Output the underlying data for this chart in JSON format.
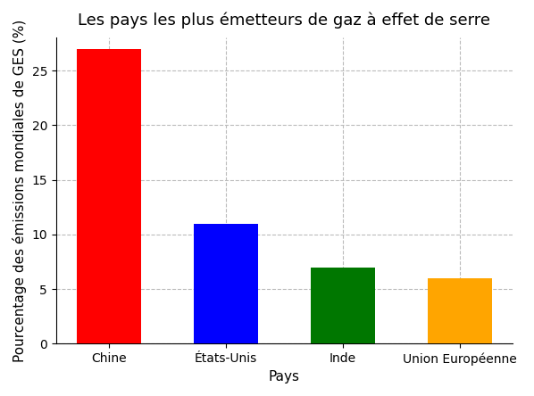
{
  "title": "Les pays les plus émetteurs de gaz à effet de serre",
  "xlabel": "Pays",
  "ylabel": "Pourcentage des émissions mondiales de GES (%)",
  "categories": [
    "Chine",
    "États-Unis",
    "Inde",
    "Union Européenne"
  ],
  "values": [
    27,
    11,
    7,
    6
  ],
  "bar_colors": [
    "#ff0000",
    "#0000ff",
    "#007700",
    "#ffa500"
  ],
  "ylim": [
    0,
    28
  ],
  "yticks": [
    0,
    5,
    10,
    15,
    20,
    25
  ],
  "grid_color": "#bbbbbb",
  "grid_linestyle": "--",
  "background_color": "#ffffff",
  "title_fontsize": 13,
  "label_fontsize": 11,
  "tick_fontsize": 10,
  "bar_width": 0.55
}
